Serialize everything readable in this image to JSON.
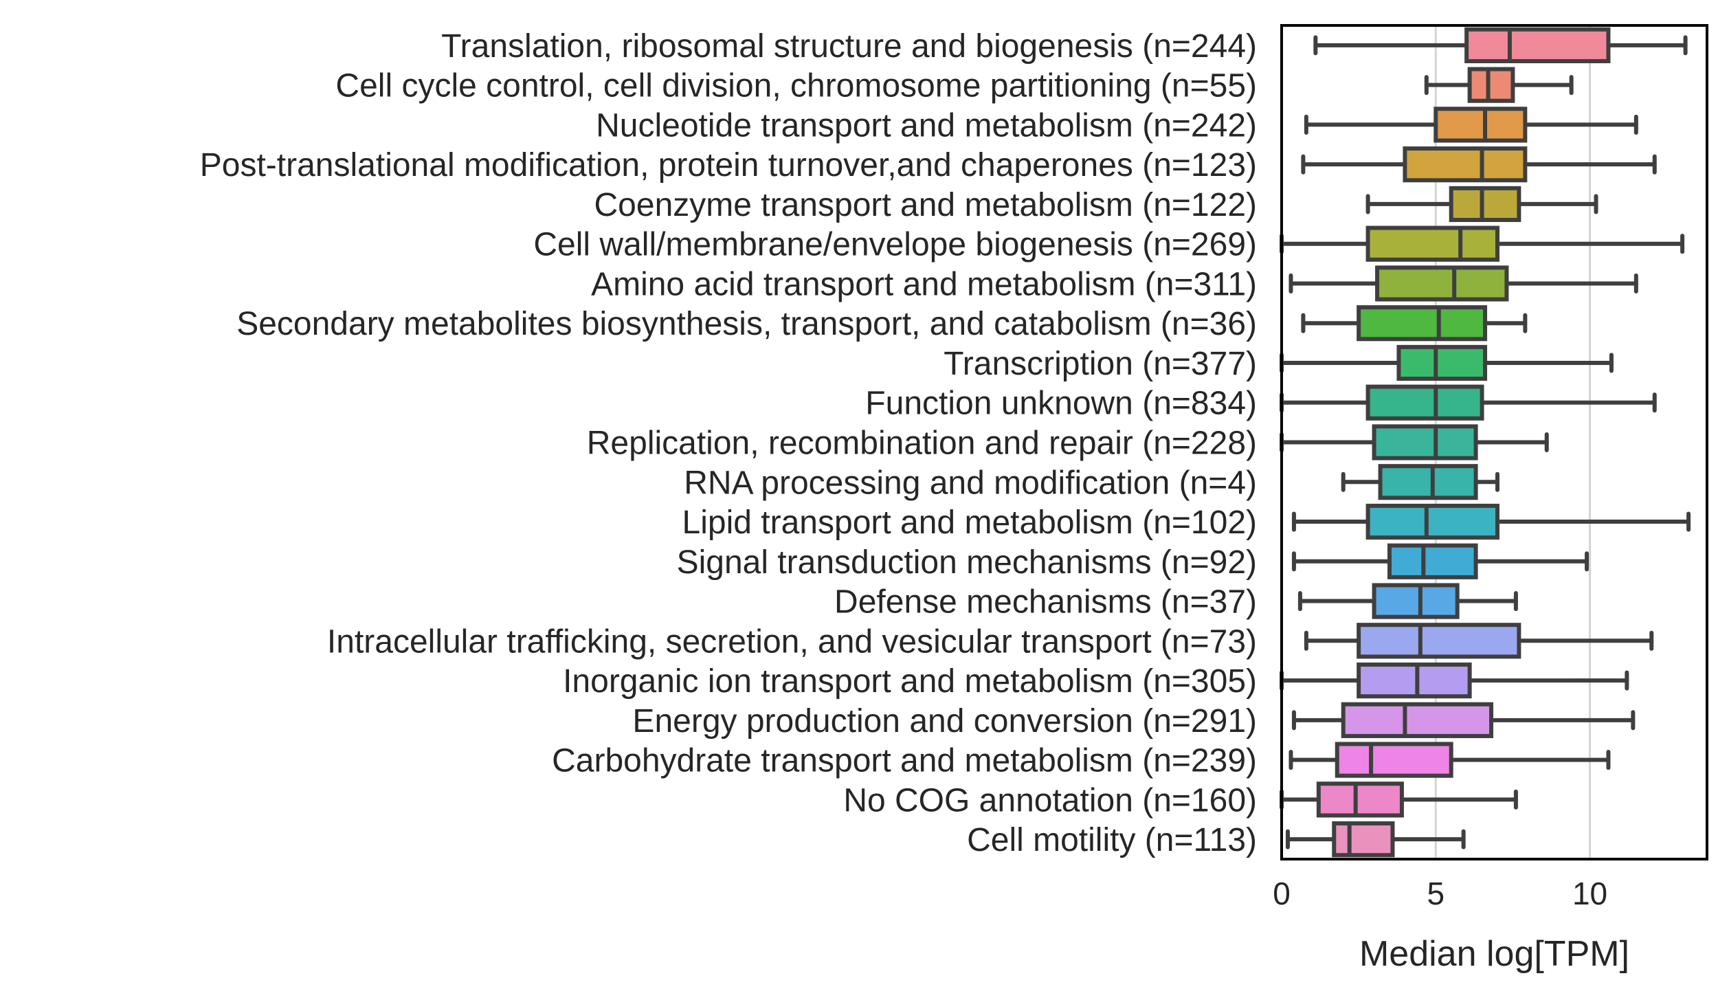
{
  "chart_data": {
    "type": "boxplot",
    "orientation": "horizontal",
    "xlabel": "Median log[TPM]",
    "xlim": [
      0,
      13.8
    ],
    "xticks": [
      0,
      5,
      10
    ],
    "grid": "vertical",
    "legend": "none",
    "line_color": "#3f3f3f",
    "categories": [
      {
        "label": "Translation, ribosomal structure and biogenesis (n=244)",
        "whisker_low": 1.1,
        "q1": 6.0,
        "median": 7.4,
        "q3": 10.6,
        "whisker_high": 13.1,
        "color": "#f08a9a"
      },
      {
        "label": "Cell cycle control, cell division, chromosome partitioning (n=55)",
        "whisker_low": 4.7,
        "q1": 6.1,
        "median": 6.7,
        "q3": 7.5,
        "whisker_high": 9.4,
        "color": "#ed8a73"
      },
      {
        "label": "Nucleotide transport and metabolism (n=242)",
        "whisker_low": 0.8,
        "q1": 5.0,
        "median": 6.6,
        "q3": 7.9,
        "whisker_high": 11.5,
        "color": "#e09a4a"
      },
      {
        "label": "Post-translational modification, protein turnover,and chaperones (n=123)",
        "whisker_low": 0.7,
        "q1": 4.0,
        "median": 6.5,
        "q3": 7.9,
        "whisker_high": 12.1,
        "color": "#d2a43d"
      },
      {
        "label": "Coenzyme transport and metabolism (n=122)",
        "whisker_low": 2.8,
        "q1": 5.5,
        "median": 6.5,
        "q3": 7.7,
        "whisker_high": 10.2,
        "color": "#baa93a"
      },
      {
        "label": "Cell wall/membrane/envelope biogenesis (n=269)",
        "whisker_low": 0.0,
        "q1": 2.8,
        "median": 5.8,
        "q3": 7.0,
        "whisker_high": 13.0,
        "color": "#a8b23a"
      },
      {
        "label": "Amino acid transport and metabolism (n=311)",
        "whisker_low": 0.3,
        "q1": 3.1,
        "median": 5.6,
        "q3": 7.3,
        "whisker_high": 11.5,
        "color": "#8fb13d"
      },
      {
        "label": "Secondary metabolites biosynthesis, transport, and catabolism (n=36)",
        "whisker_low": 0.7,
        "q1": 2.5,
        "median": 5.1,
        "q3": 6.6,
        "whisker_high": 7.9,
        "color": "#4fb840"
      },
      {
        "label": "Transcription (n=377)",
        "whisker_low": 0.0,
        "q1": 3.8,
        "median": 5.0,
        "q3": 6.6,
        "whisker_high": 10.7,
        "color": "#3cba6b"
      },
      {
        "label": "Function unknown (n=834)",
        "whisker_low": 0.0,
        "q1": 2.8,
        "median": 5.0,
        "q3": 6.5,
        "whisker_high": 12.1,
        "color": "#36b48c"
      },
      {
        "label": "Replication, recombination and repair (n=228)",
        "whisker_low": 0.0,
        "q1": 3.0,
        "median": 5.0,
        "q3": 6.3,
        "whisker_high": 8.6,
        "color": "#3ab59c"
      },
      {
        "label": "RNA processing and modification (n=4)",
        "whisker_low": 2.0,
        "q1": 3.2,
        "median": 4.9,
        "q3": 6.3,
        "whisker_high": 7.0,
        "color": "#39b4aa"
      },
      {
        "label": "Lipid transport and metabolism (n=102)",
        "whisker_low": 0.4,
        "q1": 2.8,
        "median": 4.7,
        "q3": 7.0,
        "whisker_high": 13.2,
        "color": "#3cb3c2"
      },
      {
        "label": "Signal transduction mechanisms (n=92)",
        "whisker_low": 0.4,
        "q1": 3.5,
        "median": 4.6,
        "q3": 6.3,
        "whisker_high": 9.9,
        "color": "#40acd6"
      },
      {
        "label": "Defense mechanisms (n=37)",
        "whisker_low": 0.6,
        "q1": 3.0,
        "median": 4.5,
        "q3": 5.7,
        "whisker_high": 7.6,
        "color": "#58a8e6"
      },
      {
        "label": "Intracellular trafficking, secretion, and vesicular transport (n=73)",
        "whisker_low": 0.8,
        "q1": 2.5,
        "median": 4.5,
        "q3": 7.7,
        "whisker_high": 12.0,
        "color": "#9aa8f0"
      },
      {
        "label": "Inorganic ion transport and metabolism (n=305)",
        "whisker_low": 0.0,
        "q1": 2.5,
        "median": 4.4,
        "q3": 6.1,
        "whisker_high": 11.2,
        "color": "#b49cf0"
      },
      {
        "label": "Energy production and conversion (n=291)",
        "whisker_low": 0.4,
        "q1": 2.0,
        "median": 4.0,
        "q3": 6.8,
        "whisker_high": 11.4,
        "color": "#d596ea"
      },
      {
        "label": "Carbohydrate transport and metabolism (n=239)",
        "whisker_low": 0.3,
        "q1": 1.8,
        "median": 2.9,
        "q3": 5.5,
        "whisker_high": 10.6,
        "color": "#ee84e6"
      },
      {
        "label": "No COG annotation (n=160)",
        "whisker_low": 0.0,
        "q1": 1.2,
        "median": 2.4,
        "q3": 3.9,
        "whisker_high": 7.6,
        "color": "#ed88c8"
      },
      {
        "label": "Cell motility (n=113)",
        "whisker_low": 0.2,
        "q1": 1.7,
        "median": 2.2,
        "q3": 3.6,
        "whisker_high": 5.9,
        "color": "#ea92bd"
      }
    ]
  }
}
